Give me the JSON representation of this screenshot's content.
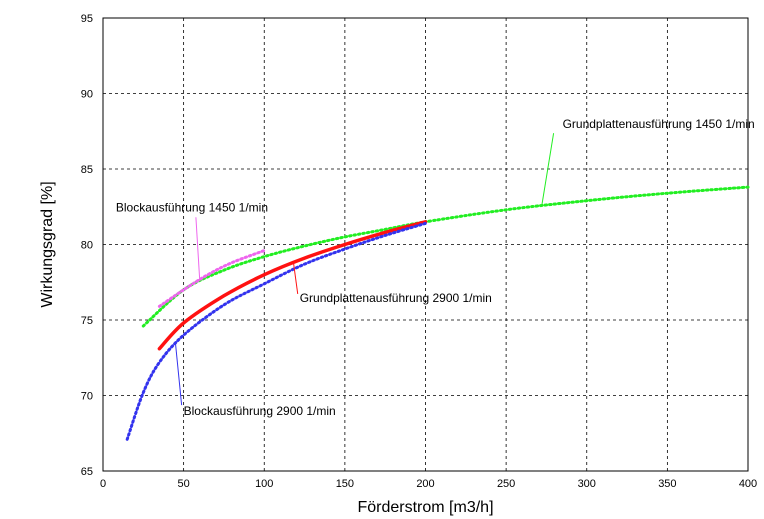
{
  "chart_data": {
    "type": "line",
    "xlabel": "Förderstrom [m3/h]",
    "ylabel": "Wirkungsgrad [%]",
    "xlim": [
      0,
      400
    ],
    "ylim": [
      65,
      95
    ],
    "xticks": [
      0,
      50,
      100,
      150,
      200,
      250,
      300,
      350,
      400
    ],
    "yticks": [
      65,
      70,
      75,
      80,
      85,
      90,
      95
    ],
    "grid": true,
    "series": [
      {
        "name": "Grundplattenausführung 1450 1/min",
        "color": "#22ee22",
        "style": "dotted",
        "x": [
          25,
          50,
          75,
          100,
          125,
          150,
          175,
          200,
          250,
          300,
          350,
          400
        ],
        "y": [
          74.6,
          77.0,
          78.3,
          79.2,
          79.9,
          80.5,
          81.0,
          81.5,
          82.3,
          82.9,
          83.4,
          83.8
        ]
      },
      {
        "name": "Blockausführung 1450 1/min",
        "color": "#ee66ee",
        "style": "dotted",
        "x": [
          35,
          50,
          65,
          80,
          100
        ],
        "y": [
          75.9,
          77.0,
          78.0,
          78.8,
          79.6
        ]
      },
      {
        "name": "Grundplattenausführung 2900 1/min",
        "color": "#ff1111",
        "style": "solid",
        "x": [
          35,
          50,
          75,
          100,
          125,
          150,
          175,
          200
        ],
        "y": [
          73.1,
          74.8,
          76.6,
          78.0,
          79.1,
          80.0,
          80.8,
          81.5
        ]
      },
      {
        "name": "Blockausführung 2900 1/min",
        "color": "#3333ee",
        "style": "dotted",
        "x": [
          15,
          25,
          35,
          50,
          75,
          100,
          125,
          150,
          175,
          200
        ],
        "y": [
          67.1,
          70.2,
          72.2,
          74.0,
          76.0,
          77.4,
          78.7,
          79.7,
          80.6,
          81.4
        ]
      }
    ],
    "annotations": [
      {
        "text": "Grundplattenausführung 1450 1/min",
        "series": 0,
        "x": 285,
        "y": 87.7,
        "anchor_x": 272,
        "anchor_y": 82.5
      },
      {
        "text": "Blockausführung 1450 1/min",
        "series": 1,
        "x": 8,
        "y": 82.2,
        "anchor_x": 60,
        "anchor_y": 77.6
      },
      {
        "text": "Grundplattenausführung 2900 1/min",
        "series": 2,
        "x": 122,
        "y": 76.2,
        "anchor_x": 118,
        "anchor_y": 78.9
      },
      {
        "text": "Blockausführung 2900 1/min",
        "series": 3,
        "x": 50,
        "y": 68.7,
        "anchor_x": 45,
        "anchor_y": 73.4
      }
    ]
  }
}
